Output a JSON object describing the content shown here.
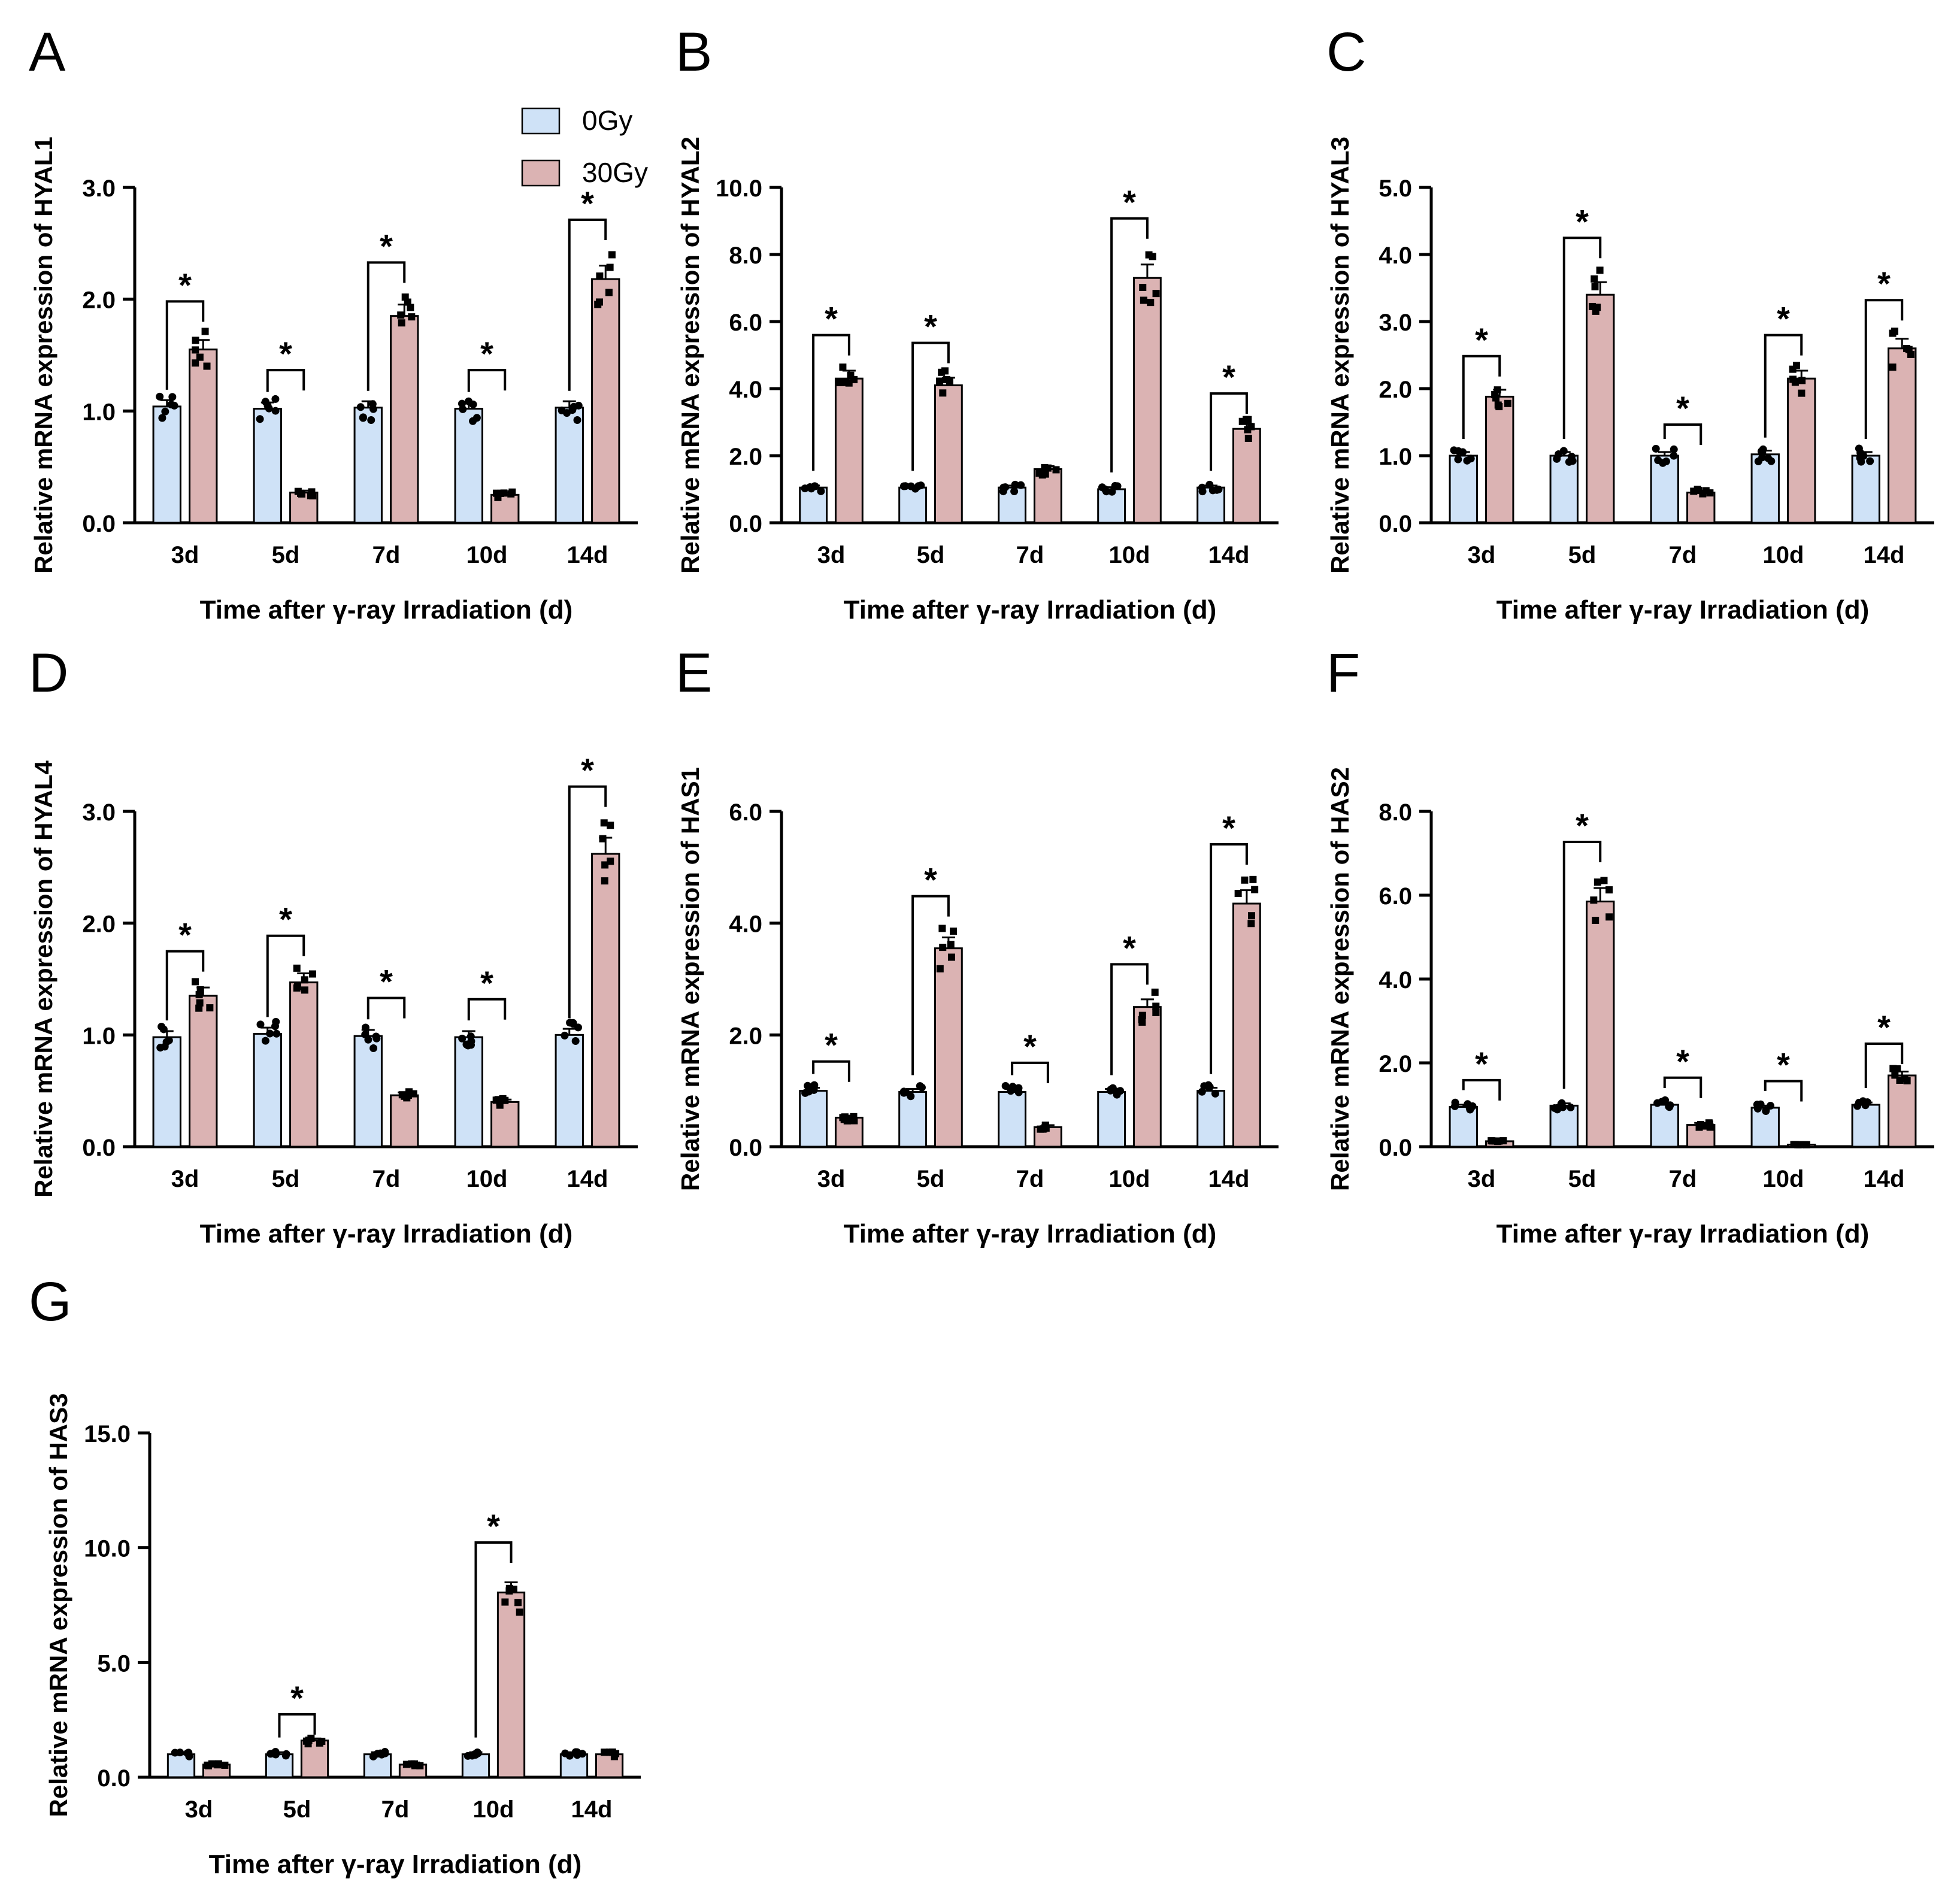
{
  "legend": [
    {
      "name": "0Gy",
      "color": "#cfe2f7"
    },
    {
      "name": "30Gy",
      "color": "#dbb3b3"
    }
  ],
  "colors": {
    "control": "#cfe2f7",
    "irradiated": "#dbb3b3",
    "ink": "#000000"
  },
  "chart_data": [
    {
      "panel": "A",
      "type": "bar",
      "ylabel": "Relative mRNA expression of HYAL1",
      "xlabel": "Time after γ-ray Irradiation (d)",
      "categories": [
        "3d",
        "5d",
        "7d",
        "10d",
        "14d"
      ],
      "ylim": [
        0,
        3
      ],
      "yticks": [
        "0.0",
        "1.0",
        "2.0",
        "3.0"
      ],
      "series": [
        {
          "name": "0Gy",
          "values": [
            1.04,
            1.02,
            1.03,
            1.02,
            1.03
          ]
        },
        {
          "name": "30Gy",
          "values": [
            1.55,
            0.27,
            1.85,
            0.25,
            2.18
          ]
        }
      ],
      "sig_marker": "*",
      "significant": [
        true,
        true,
        true,
        true,
        true
      ]
    },
    {
      "panel": "B",
      "type": "bar",
      "ylabel": "Relative mRNA expression of HYAL2",
      "xlabel": "Time after γ-ray Irradiation (d)",
      "categories": [
        "3d",
        "5d",
        "7d",
        "10d",
        "14d"
      ],
      "ylim": [
        0,
        10
      ],
      "yticks": [
        "0.0",
        "2.0",
        "4.0",
        "6.0",
        "8.0",
        "10.0"
      ],
      "series": [
        {
          "name": "0Gy",
          "values": [
            1.05,
            1.05,
            1.05,
            1.0,
            1.05
          ]
        },
        {
          "name": "30Gy",
          "values": [
            4.3,
            4.1,
            1.6,
            7.3,
            2.8
          ]
        }
      ],
      "sig_marker": "*",
      "significant": [
        true,
        true,
        false,
        true,
        true
      ]
    },
    {
      "panel": "C",
      "type": "bar",
      "ylabel": "Relative mRNA expression of HYAL3",
      "xlabel": "Time after γ-ray Irradiation (d)",
      "categories": [
        "3d",
        "5d",
        "7d",
        "10d",
        "14d"
      ],
      "ylim": [
        0,
        5
      ],
      "yticks": [
        "0.0",
        "1.0",
        "2.0",
        "3.0",
        "4.0",
        "5.0"
      ],
      "series": [
        {
          "name": "0Gy",
          "values": [
            1.0,
            1.0,
            1.0,
            1.02,
            1.0
          ]
        },
        {
          "name": "30Gy",
          "values": [
            1.88,
            3.4,
            0.45,
            2.15,
            2.6
          ]
        }
      ],
      "sig_marker": "*",
      "significant": [
        true,
        true,
        true,
        true,
        true
      ]
    },
    {
      "panel": "D",
      "type": "bar",
      "ylabel": "Relative mRNA expression of HYAL4",
      "xlabel": "Time after γ-ray Irradiation (d)",
      "categories": [
        "3d",
        "5d",
        "7d",
        "10d",
        "14d"
      ],
      "ylim": [
        0,
        3
      ],
      "yticks": [
        "0.0",
        "1.0",
        "2.0",
        "3.0"
      ],
      "series": [
        {
          "name": "0Gy",
          "values": [
            0.98,
            1.01,
            0.99,
            0.98,
            1.0
          ]
        },
        {
          "name": "30Gy",
          "values": [
            1.35,
            1.47,
            0.46,
            0.4,
            2.62
          ]
        }
      ],
      "sig_marker": "*",
      "significant": [
        true,
        true,
        true,
        true,
        true
      ]
    },
    {
      "panel": "E",
      "type": "bar",
      "ylabel": "Relative mRNA expression of HAS1",
      "xlabel": "Time after γ-ray Irradiation (d)",
      "categories": [
        "3d",
        "5d",
        "7d",
        "10d",
        "14d"
      ],
      "ylim": [
        0,
        6
      ],
      "yticks": [
        "0.0",
        "2.0",
        "4.0",
        "6.0"
      ],
      "series": [
        {
          "name": "0Gy",
          "values": [
            1.0,
            0.98,
            0.98,
            0.98,
            1.0
          ]
        },
        {
          "name": "30Gy",
          "values": [
            0.52,
            3.55,
            0.35,
            2.5,
            4.35
          ]
        }
      ],
      "sig_marker": "*",
      "significant": [
        true,
        true,
        true,
        true,
        true
      ]
    },
    {
      "panel": "F",
      "type": "bar",
      "ylabel": "Relative mRNA expression of HAS2",
      "xlabel": "Time after γ-ray Irradiation (d)",
      "categories": [
        "3d",
        "5d",
        "7d",
        "10d",
        "14d"
      ],
      "ylim": [
        0,
        8
      ],
      "yticks": [
        "0.0",
        "2.0",
        "4.0",
        "6.0",
        "8.0"
      ],
      "series": [
        {
          "name": "0Gy",
          "values": [
            0.95,
            0.98,
            1.0,
            0.93,
            1.0
          ]
        },
        {
          "name": "30Gy",
          "values": [
            0.13,
            5.85,
            0.52,
            0.05,
            1.7
          ]
        }
      ],
      "sig_marker": "*",
      "significant": [
        true,
        true,
        true,
        true,
        true
      ]
    },
    {
      "panel": "G",
      "type": "bar",
      "ylabel": "Relative mRNA expression of HAS3",
      "xlabel": "Time after γ-ray Irradiation (d)",
      "categories": [
        "3d",
        "5d",
        "7d",
        "10d",
        "14d"
      ],
      "ylim": [
        0,
        15
      ],
      "yticks": [
        "0.0",
        "5.0",
        "10.0",
        "15.0"
      ],
      "series": [
        {
          "name": "0Gy",
          "values": [
            1.0,
            1.0,
            1.0,
            1.0,
            1.0
          ]
        },
        {
          "name": "30Gy",
          "values": [
            0.55,
            1.6,
            0.55,
            8.05,
            1.0
          ]
        }
      ],
      "sig_marker": "*",
      "significant": [
        false,
        true,
        false,
        true,
        false
      ]
    }
  ]
}
